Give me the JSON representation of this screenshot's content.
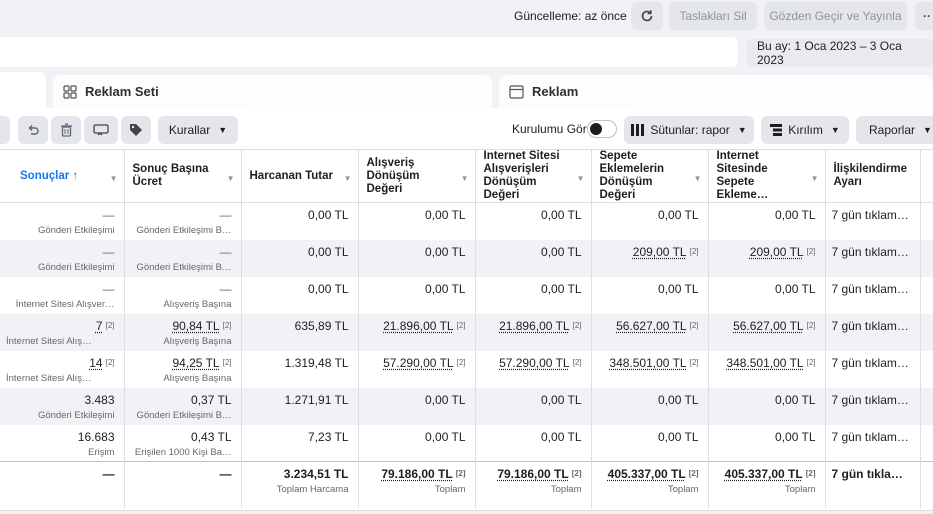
{
  "topbar": {
    "update_status": "Güncelleme: az önce",
    "refresh_icon": "refresh-icon",
    "delete_drafts_label": "Taslakları Sil",
    "review_publish_label": "Gözden Geçir ve Yayınla",
    "more_label": "··"
  },
  "date_range": {
    "label": "Bu ay: 1 Oca 2023 – 3 Oca 2023",
    "caret": "▼"
  },
  "tabs": [
    {
      "label": "Reklam Seti",
      "icon": "grid-icon"
    },
    {
      "label": "Reklam",
      "icon": "ad-window-icon"
    }
  ],
  "toolbar": {
    "rules_label": "Kurallar",
    "setup_label": "Kurulumu Gör",
    "columns_label": "Sütunlar: rapor",
    "breakdown_label": "Kırılım",
    "reports_label": "Raporlar",
    "caret": "▼"
  },
  "columns": [
    {
      "label": "Sonuçlar ↑"
    },
    {
      "label": "Sonuç Başına Ücret"
    },
    {
      "label": "Harcanan Tutar"
    },
    {
      "label": "Alışveriş Dönüşüm Değeri"
    },
    {
      "label": "İnternet Sitesi Alışverişleri Dönüşüm Değeri"
    },
    {
      "label": "Sepete Eklemelerin Dönüşüm Değeri"
    },
    {
      "label": "İnternet Sitesinde Sepete Ekleme…"
    },
    {
      "label": "İlişkilendirme Ayarı"
    }
  ],
  "sort_caret": "▼",
  "badge": "[2]",
  "rows": [
    {
      "results": "—",
      "results_sub": "Gönderi Etkileşimi",
      "cpr": "—",
      "cpr_sub": "Gönderi Etkileşimi B…",
      "spend": "0,00 TL",
      "purchase_value": "0,00 TL",
      "web_purchase_value": "0,00 TL",
      "atc_value": "0,00 TL",
      "web_atc_value": "0,00 TL",
      "attribution": "7 gün tıklama…"
    },
    {
      "results": "—",
      "results_sub": "Gönderi Etkileşimi",
      "cpr": "—",
      "cpr_sub": "Gönderi Etkileşimi B…",
      "spend": "0,00 TL",
      "purchase_value": "0,00 TL",
      "web_purchase_value": "0,00 TL",
      "atc_value": "209,00 TL",
      "web_atc_value": "209,00 TL",
      "attribution": "7 gün tıklama…"
    },
    {
      "results": "—",
      "results_sub": "İnternet Sitesi Alışver…",
      "cpr": "—",
      "cpr_sub": "Alışveriş Başına",
      "spend": "0,00 TL",
      "purchase_value": "0,00 TL",
      "web_purchase_value": "0,00 TL",
      "atc_value": "0,00 TL",
      "web_atc_value": "0,00 TL",
      "attribution": "7 gün tıklama…"
    },
    {
      "results": "7",
      "results_sub": "İnternet Sitesi Alış…",
      "cpr": "90,84 TL",
      "cpr_sub": "Alışveriş Başına",
      "spend": "635,89 TL",
      "purchase_value": "21.896,00 TL",
      "web_purchase_value": "21.896,00 TL",
      "atc_value": "56.627,00 TL",
      "web_atc_value": "56.627,00 TL",
      "attribution": "7 gün tıklama…"
    },
    {
      "results": "14",
      "results_sub": "İnternet Sitesi Alış…",
      "cpr": "94,25 TL",
      "cpr_sub": "Alışveriş Başına",
      "spend": "1.319,48 TL",
      "purchase_value": "57.290,00 TL",
      "web_purchase_value": "57.290,00 TL",
      "atc_value": "348.501,00 TL",
      "web_atc_value": "348.501,00 TL",
      "attribution": "7 gün tıklama…"
    },
    {
      "results": "3.483",
      "results_sub": "Gönderi Etkileşimi",
      "cpr": "0,37 TL",
      "cpr_sub": "Gönderi Etkileşimi B…",
      "spend": "1.271,91 TL",
      "purchase_value": "0,00 TL",
      "web_purchase_value": "0,00 TL",
      "atc_value": "0,00 TL",
      "web_atc_value": "0,00 TL",
      "attribution": "7 gün tıklama…"
    },
    {
      "results": "16.683",
      "results_sub": "Erişim",
      "cpr": "0,43 TL",
      "cpr_sub": "Erişilen 1000 Kişi Ba…",
      "spend": "7,23 TL",
      "purchase_value": "0,00 TL",
      "web_purchase_value": "0,00 TL",
      "atc_value": "0,00 TL",
      "web_atc_value": "0,00 TL",
      "attribution": "7 gün tıklama…"
    }
  ],
  "totals": {
    "results": "—",
    "cpr": "—",
    "spend": "3.234,51 TL",
    "spend_sub": "Toplam Harcama",
    "purchase_value": "79.186,00 TL",
    "purchase_sub": "Toplam",
    "web_purchase_value": "79.186,00 TL",
    "web_purchase_sub": "Toplam",
    "atc_value": "405.337,00 TL",
    "atc_sub": "Toplam",
    "web_atc_value": "405.337,00 TL",
    "web_atc_sub": "Toplam",
    "attribution": "7 gün tıklama …"
  }
}
